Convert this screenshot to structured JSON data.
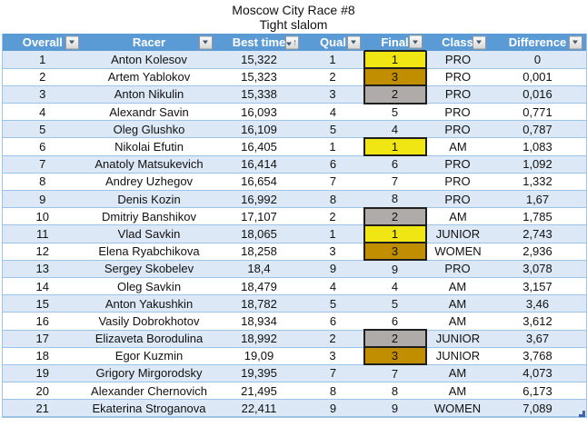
{
  "title": "Moscow City Race #8",
  "subtitle": "Tight slalom",
  "colors": {
    "header_bg": "#5B9BD5",
    "band_bg": "#DCE8F5",
    "white_bg": "#FFFFFF",
    "border": "#9DC3E6",
    "gold": "#F0E613",
    "silver": "#AEABA9",
    "bronze": "#C18E00",
    "medal_border": "#1F1F1F",
    "handle": "#4062AE",
    "icon_navy": "#44546A"
  },
  "table": {
    "columns": [
      {
        "label": "Overall",
        "sorted": ""
      },
      {
        "label": "Racer",
        "sorted": ""
      },
      {
        "label": "Best time",
        "sorted": "asc"
      },
      {
        "label": "Qual",
        "sorted": ""
      },
      {
        "label": "Final",
        "sorted": ""
      },
      {
        "label": "Class",
        "sorted": ""
      },
      {
        "label": "Difference",
        "sorted": ""
      }
    ],
    "keys": [
      "overall",
      "racer",
      "best_time",
      "qual",
      "final",
      "class",
      "difference"
    ],
    "rows": [
      {
        "overall": "1",
        "racer": "Anton Kolesov",
        "best_time": "15,322",
        "qual": "1",
        "final": "1",
        "medal": "gold",
        "class": "PRO",
        "difference": "0"
      },
      {
        "overall": "2",
        "racer": "Artem Yablokov",
        "best_time": "15,323",
        "qual": "2",
        "final": "3",
        "medal": "bronze",
        "class": "PRO",
        "difference": "0,001"
      },
      {
        "overall": "3",
        "racer": "Anton Nikulin",
        "best_time": "15,338",
        "qual": "3",
        "final": "2",
        "medal": "silver",
        "class": "PRO",
        "difference": "0,016"
      },
      {
        "overall": "4",
        "racer": "Alexandr Savin",
        "best_time": "16,093",
        "qual": "4",
        "final": "5",
        "medal": "",
        "class": "PRO",
        "difference": "0,771"
      },
      {
        "overall": "5",
        "racer": "Oleg Glushko",
        "best_time": "16,109",
        "qual": "5",
        "final": "4",
        "medal": "",
        "class": "PRO",
        "difference": "0,787"
      },
      {
        "overall": "6",
        "racer": "Nikolai Efutin",
        "best_time": "16,405",
        "qual": "1",
        "final": "1",
        "medal": "gold",
        "class": "AM",
        "difference": "1,083"
      },
      {
        "overall": "7",
        "racer": "Anatoly Matsukevich",
        "best_time": "16,414",
        "qual": "6",
        "final": "6",
        "medal": "",
        "class": "PRO",
        "difference": "1,092"
      },
      {
        "overall": "8",
        "racer": "Andrey Uzhegov",
        "best_time": "16,654",
        "qual": "7",
        "final": "7",
        "medal": "",
        "class": "PRO",
        "difference": "1,332"
      },
      {
        "overall": "9",
        "racer": "Denis Kozin",
        "best_time": "16,992",
        "qual": "8",
        "final": "8",
        "medal": "",
        "class": "PRO",
        "difference": "1,67"
      },
      {
        "overall": "10",
        "racer": "Dmitriy Banshikov",
        "best_time": "17,107",
        "qual": "2",
        "final": "2",
        "medal": "silver",
        "class": "AM",
        "difference": "1,785"
      },
      {
        "overall": "11",
        "racer": "Vlad Savkin",
        "best_time": "18,065",
        "qual": "1",
        "final": "1",
        "medal": "gold",
        "class": "JUNIOR",
        "difference": "2,743"
      },
      {
        "overall": "12",
        "racer": "Elena Ryabchikova",
        "best_time": "18,258",
        "qual": "3",
        "final": "3",
        "medal": "bronze",
        "class": "WOMEN",
        "difference": "2,936"
      },
      {
        "overall": "13",
        "racer": "Sergey Skobelev",
        "best_time": "18,4",
        "qual": "9",
        "final": "9",
        "medal": "",
        "class": "PRO",
        "difference": "3,078"
      },
      {
        "overall": "14",
        "racer": "Oleg Savkin",
        "best_time": "18,479",
        "qual": "4",
        "final": "4",
        "medal": "",
        "class": "AM",
        "difference": "3,157"
      },
      {
        "overall": "15",
        "racer": "Anton Yakushkin",
        "best_time": "18,782",
        "qual": "5",
        "final": "5",
        "medal": "",
        "class": "AM",
        "difference": "3,46"
      },
      {
        "overall": "16",
        "racer": "Vasily Dobrokhotov",
        "best_time": "18,934",
        "qual": "6",
        "final": "6",
        "medal": "",
        "class": "AM",
        "difference": "3,612"
      },
      {
        "overall": "17",
        "racer": "Elizaveta Borodulina",
        "best_time": "18,992",
        "qual": "2",
        "final": "2",
        "medal": "silver",
        "class": "JUNIOR",
        "difference": "3,67"
      },
      {
        "overall": "18",
        "racer": "Egor Kuzmin",
        "best_time": "19,09",
        "qual": "3",
        "final": "3",
        "medal": "bronze",
        "class": "JUNIOR",
        "difference": "3,768"
      },
      {
        "overall": "19",
        "racer": "Grigory Mirgorodsky",
        "best_time": "19,395",
        "qual": "7",
        "final": "7",
        "medal": "",
        "class": "AM",
        "difference": "4,073"
      },
      {
        "overall": "20",
        "racer": "Alexander Chernovich",
        "best_time": "21,495",
        "qual": "8",
        "final": "8",
        "medal": "",
        "class": "AM",
        "difference": "6,173"
      },
      {
        "overall": "21",
        "racer": "Ekaterina Stroganova",
        "best_time": "22,411",
        "qual": "9",
        "final": "9",
        "medal": "",
        "class": "WOMEN",
        "difference": "7,089"
      }
    ]
  }
}
